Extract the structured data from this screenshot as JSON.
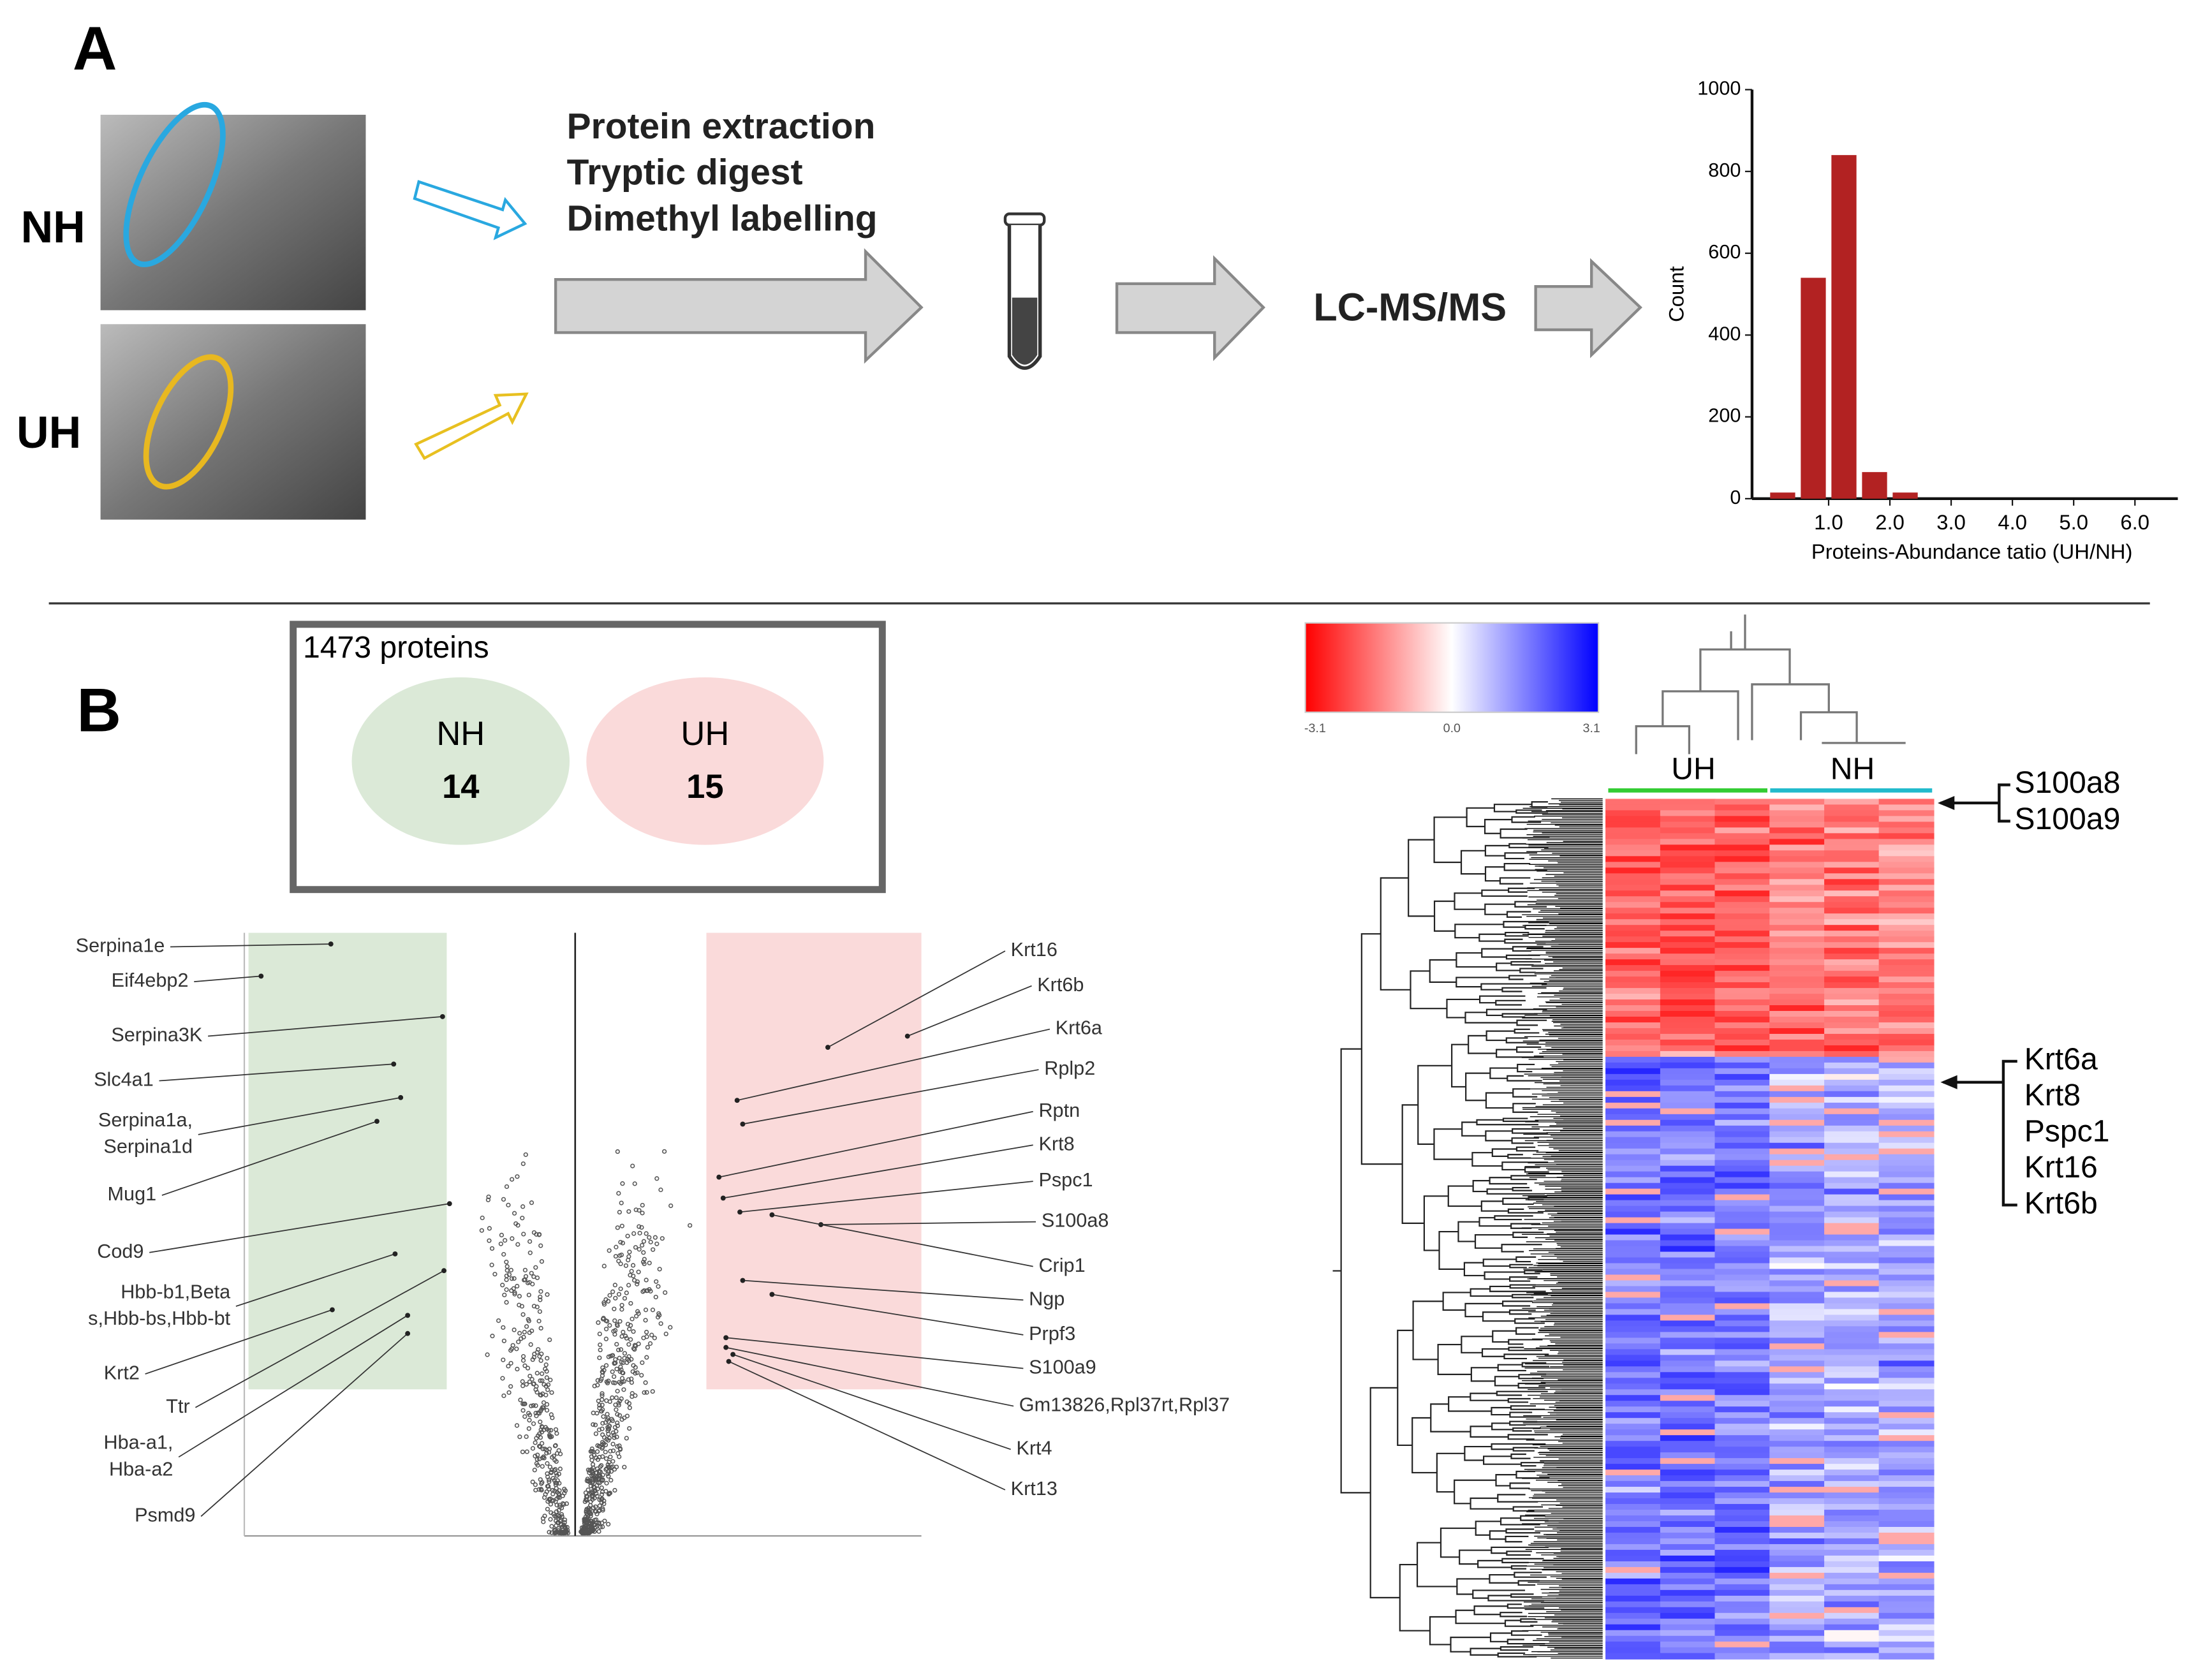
{
  "panel_a": {
    "label": "A",
    "groups": [
      "NH",
      "UH"
    ],
    "steps": [
      "Protein extraction",
      "Tryptic digest",
      "Dimethyl labelling"
    ],
    "method": "LC-MS/MS"
  },
  "chart_data": {
    "type": "histogram",
    "bins": [
      0,
      0.5,
      1.0,
      1.5,
      2.0,
      2.5
    ],
    "values": [
      15,
      540,
      840,
      65,
      15
    ],
    "color": "#b22222",
    "xlim": [
      -0.25,
      6.7
    ],
    "ylim": [
      0,
      1000
    ],
    "xticks": [
      {
        "value": 1,
        "label": "1.0"
      },
      {
        "value": 2,
        "label": "2.0"
      },
      {
        "value": 3,
        "label": "3.0"
      },
      {
        "value": 4,
        "label": "4.0"
      },
      {
        "value": 5,
        "label": "5.0"
      },
      {
        "value": 6,
        "label": "6.0"
      }
    ],
    "yticks": [
      0,
      200,
      400,
      600,
      800,
      1000
    ],
    "xlabel": "Proteins-Abundance tatio (UH/NH)",
    "ylabel": "Count"
  },
  "panel_b": {
    "label": "B",
    "venn": {
      "title": "1473 proteins",
      "left": {
        "name": "NH",
        "count": 14
      },
      "right": {
        "name": "UH",
        "count": 15
      }
    },
    "volcano": {
      "left_labels": [
        [
          "Serpina1e"
        ],
        [
          "Eif4ebp2"
        ],
        [
          "Serpina3K"
        ],
        [
          "Slc4a1"
        ],
        [
          "Serpina1a,",
          "Serpina1d"
        ],
        [
          "Mug1"
        ],
        [
          "Cod9"
        ],
        [
          "Hbb-b1,Beta",
          "s,Hbb-bs,Hbb-bt"
        ],
        [
          "Krt2"
        ],
        [
          "Ttr"
        ],
        [
          "Hba-a1,",
          "Hba-a2"
        ],
        [
          "Psmd9"
        ]
      ],
      "right_labels": [
        "Krt16",
        "Krt6b",
        "Krt6a",
        "Rplp2",
        "Rptn",
        "Krt8",
        "Pspc1",
        "S100a8",
        "Crip1",
        "Ngp",
        "Prpf3",
        "S100a9",
        "Gm13826,Rpl37rt,Rpl37",
        "Krt4",
        "Krt13"
      ]
    },
    "heatmap": {
      "colorbar_labels": [
        "-3.1",
        "0.0",
        "3.1"
      ],
      "columns": [
        "UH",
        "NH"
      ],
      "top_genes": [
        "S100a8",
        "S100a9"
      ],
      "cluster_genes": [
        "Krt6a",
        "Krt8",
        "Pspc1",
        "Krt16",
        "Krt6b"
      ]
    }
  }
}
